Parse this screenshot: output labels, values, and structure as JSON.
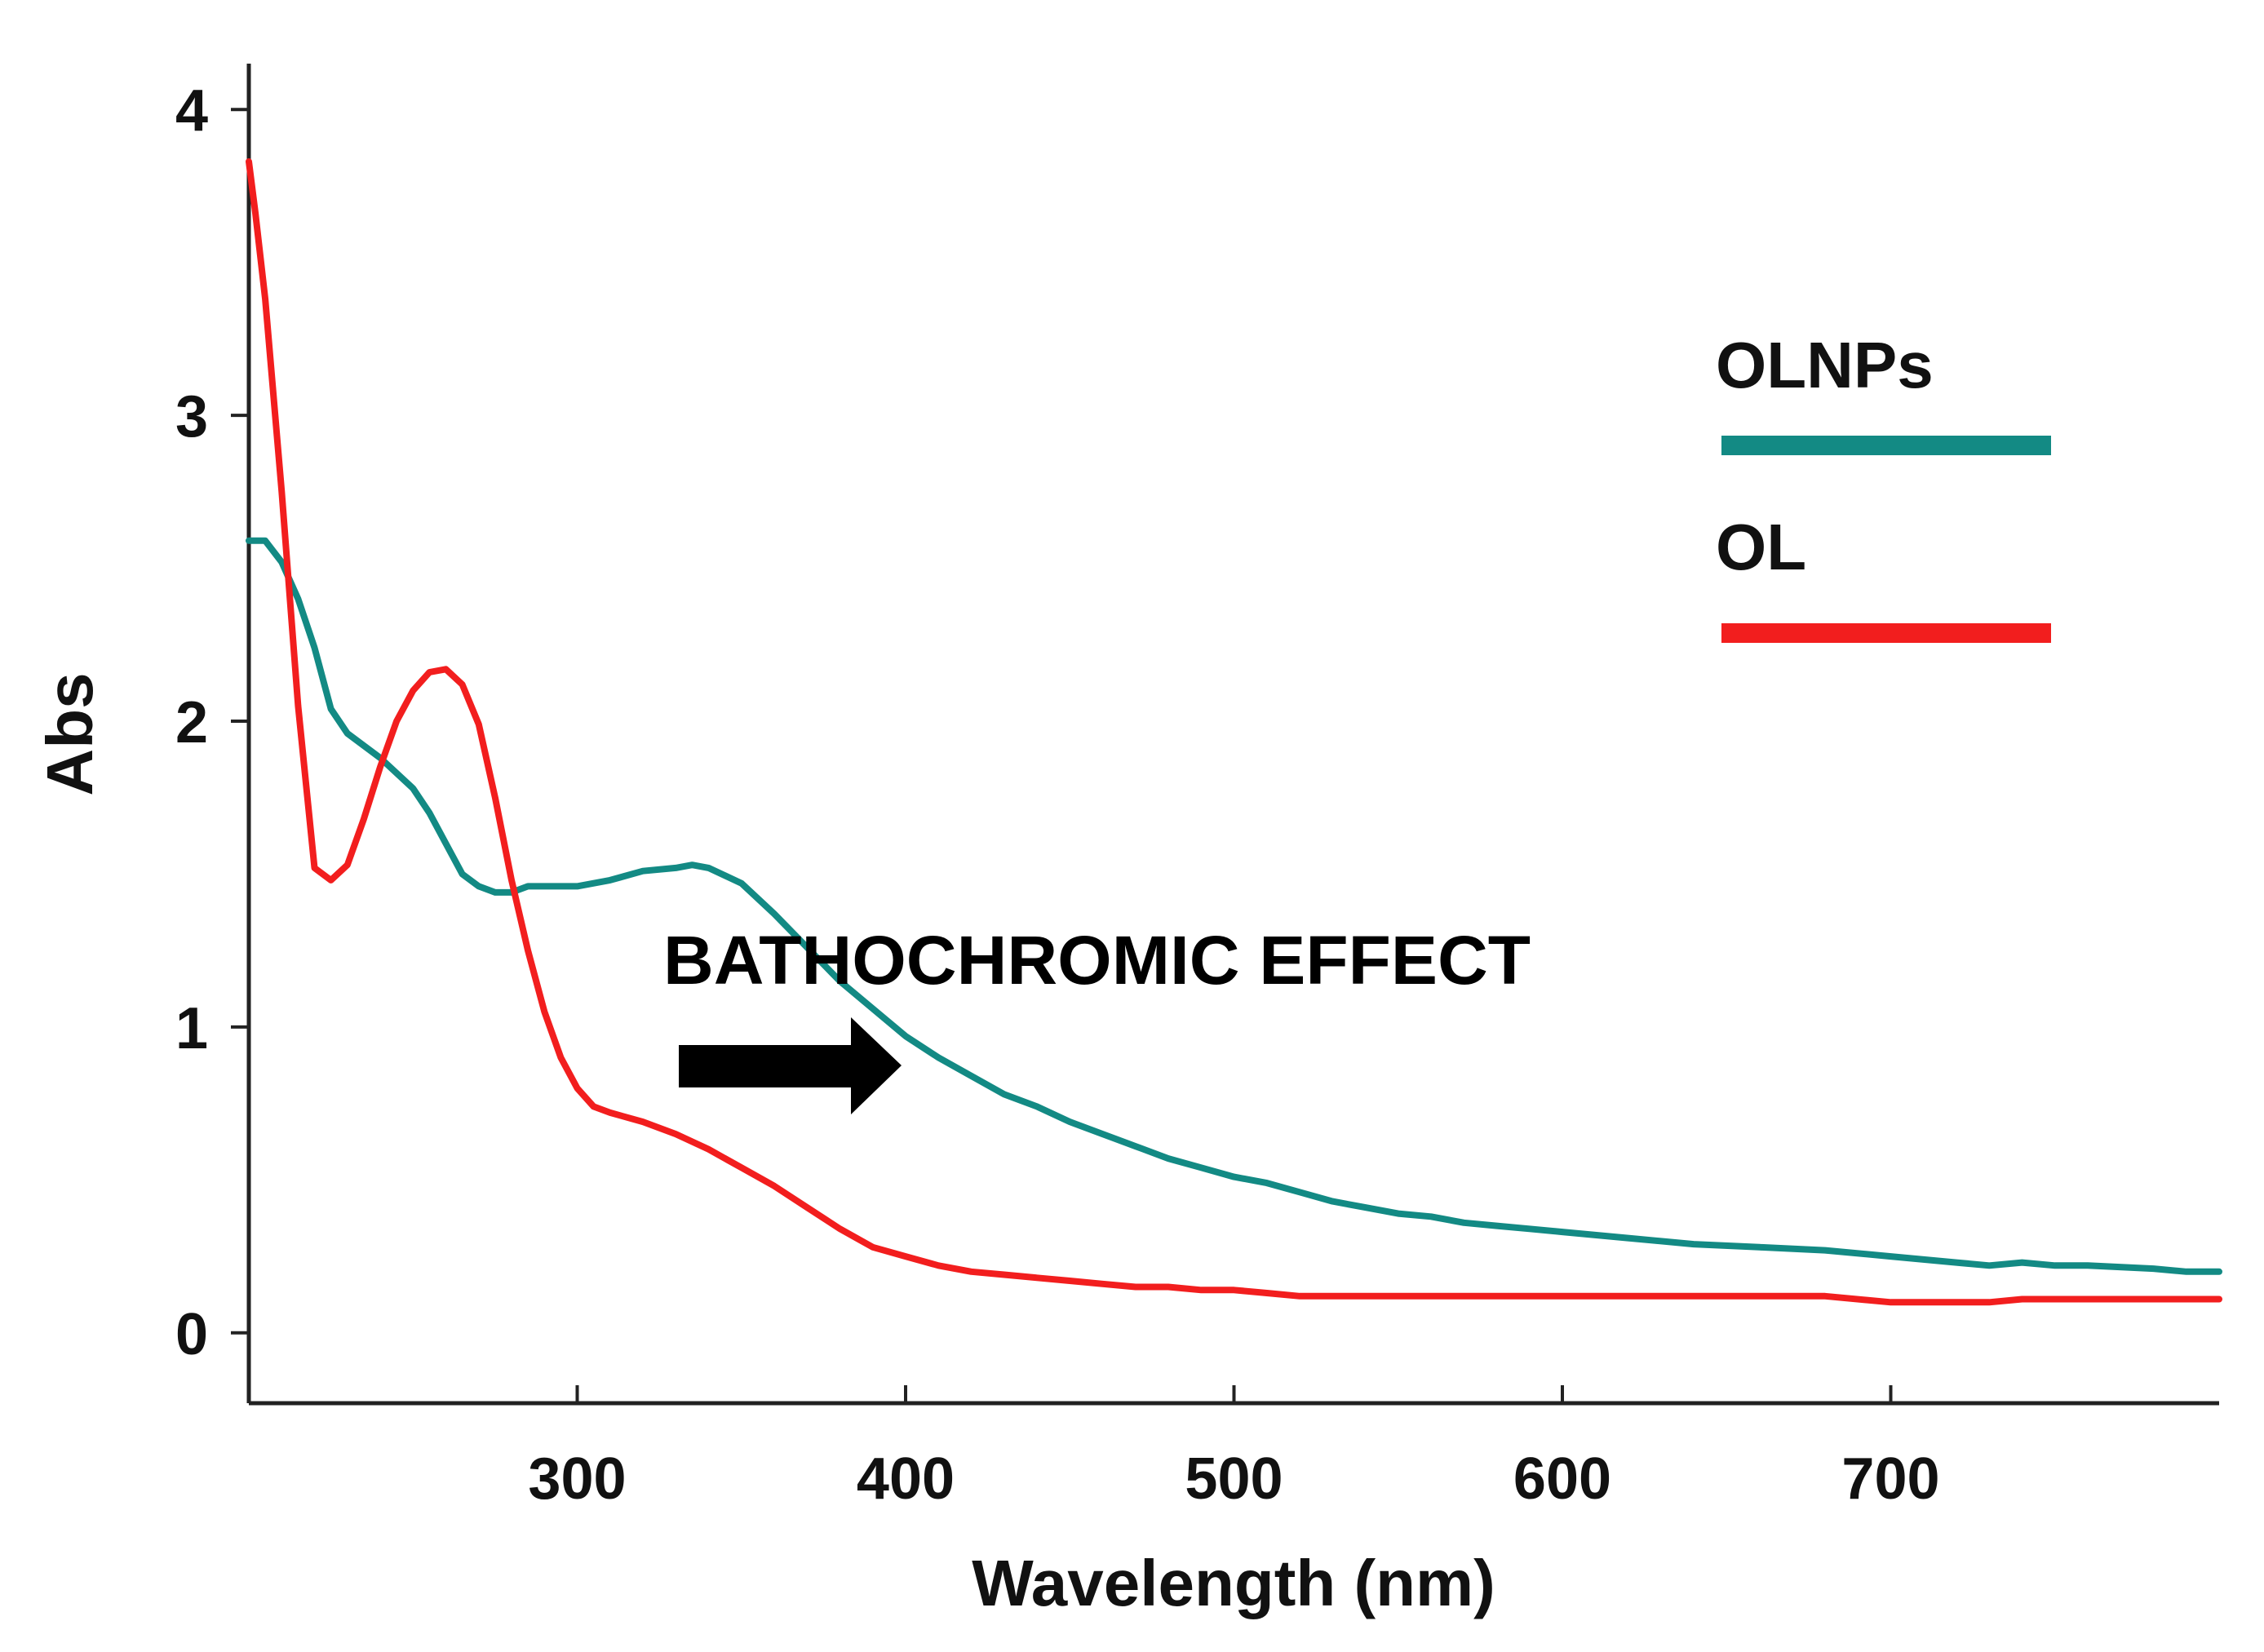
{
  "chart_data": {
    "type": "line",
    "title": "",
    "xlabel": "Wavelength (nm)",
    "ylabel": "Abs",
    "xlim": [
      200,
      800
    ],
    "ylim": [
      -0.23,
      4.15
    ],
    "xticks": [
      300,
      400,
      500,
      600,
      700
    ],
    "yticks": [
      0,
      1,
      2,
      3,
      4
    ],
    "xtick_labels": [
      "300",
      "400",
      "500",
      "600",
      "700"
    ],
    "ytick_labels": [
      "0",
      "1",
      "2",
      "3",
      "4"
    ],
    "grid": false,
    "legend_position": "top-right",
    "series": [
      {
        "name": "OLNPs",
        "color": "#138a84",
        "x": [
          200,
          205,
          210,
          215,
          220,
          225,
          230,
          240,
          250,
          255,
          260,
          265,
          270,
          275,
          280,
          285,
          290,
          300,
          310,
          320,
          330,
          335,
          340,
          350,
          360,
          370,
          380,
          390,
          400,
          410,
          420,
          430,
          440,
          450,
          460,
          470,
          480,
          490,
          500,
          510,
          520,
          530,
          540,
          550,
          560,
          570,
          580,
          590,
          600,
          620,
          640,
          660,
          680,
          700,
          720,
          730,
          740,
          750,
          760,
          780,
          790,
          800
        ],
        "values": [
          2.59,
          2.59,
          2.52,
          2.4,
          2.24,
          2.04,
          1.96,
          1.88,
          1.78,
          1.7,
          1.6,
          1.5,
          1.46,
          1.44,
          1.44,
          1.46,
          1.46,
          1.46,
          1.48,
          1.51,
          1.52,
          1.53,
          1.52,
          1.47,
          1.37,
          1.26,
          1.15,
          1.06,
          0.97,
          0.9,
          0.84,
          0.78,
          0.74,
          0.69,
          0.65,
          0.61,
          0.57,
          0.54,
          0.51,
          0.49,
          0.46,
          0.43,
          0.41,
          0.39,
          0.38,
          0.36,
          0.35,
          0.34,
          0.33,
          0.31,
          0.29,
          0.28,
          0.27,
          0.25,
          0.23,
          0.22,
          0.23,
          0.22,
          0.22,
          0.21,
          0.2,
          0.2
        ]
      },
      {
        "name": "OL",
        "color": "#f21e1e",
        "x": [
          200,
          202,
          205,
          210,
          215,
          220,
          225,
          230,
          235,
          240,
          245,
          250,
          255,
          260,
          265,
          270,
          275,
          280,
          285,
          290,
          295,
          300,
          305,
          310,
          320,
          330,
          340,
          350,
          360,
          370,
          380,
          390,
          400,
          410,
          420,
          430,
          440,
          450,
          460,
          470,
          480,
          490,
          500,
          510,
          520,
          540,
          560,
          600,
          650,
          680,
          700,
          720,
          730,
          740,
          750,
          800
        ],
        "values": [
          3.83,
          3.66,
          3.38,
          2.75,
          2.05,
          1.52,
          1.48,
          1.53,
          1.68,
          1.85,
          2.0,
          2.1,
          2.16,
          2.17,
          2.12,
          1.99,
          1.75,
          1.48,
          1.25,
          1.05,
          0.9,
          0.8,
          0.74,
          0.72,
          0.69,
          0.65,
          0.6,
          0.54,
          0.48,
          0.41,
          0.34,
          0.28,
          0.25,
          0.22,
          0.2,
          0.19,
          0.18,
          0.17,
          0.16,
          0.15,
          0.15,
          0.14,
          0.14,
          0.13,
          0.12,
          0.12,
          0.12,
          0.12,
          0.12,
          0.12,
          0.1,
          0.1,
          0.1,
          0.11,
          0.11,
          0.11
        ]
      }
    ],
    "legend": [
      {
        "label": "OLNPs",
        "color": "#138a84"
      },
      {
        "label": "OL",
        "color": "#f21e1e"
      }
    ],
    "annotation": {
      "text": "BATHOCHROMIC EFFECT",
      "arrow": "right"
    }
  }
}
